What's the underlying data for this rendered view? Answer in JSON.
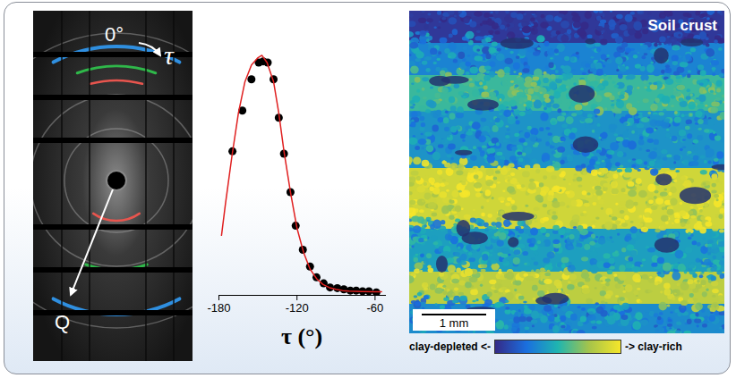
{
  "detector": {
    "angle_label": "0°",
    "tau_label": "τ",
    "q_label": "Q"
  },
  "chart_data": {
    "type": "scatter",
    "x_label": "τ (°)",
    "xlim": [
      -180,
      -52
    ],
    "xticks": [
      -180,
      -120,
      -60
    ],
    "ylim": [
      0,
      1.05
    ],
    "tick_labels": "x",
    "series": [
      {
        "type": "scatter",
        "color": "#000000",
        "marker": "circle",
        "x": [
          -169.6,
          -162,
          -155,
          -149.4,
          -146,
          -142.5,
          -138,
          -134,
          -130,
          -125,
          -121,
          -115.5,
          -110,
          -105,
          -99.5,
          -94.6,
          -89,
          -84,
          -79,
          -74.5,
          -69.6,
          -64.7,
          -59
        ],
        "values": [
          0.6,
          0.77,
          0.9,
          0.97,
          0.975,
          0.97,
          0.9,
          0.74,
          0.59,
          0.43,
          0.29,
          0.19,
          0.12,
          0.075,
          0.05,
          0.033,
          0.03,
          0.025,
          0.02,
          0.02,
          0.017,
          0.017,
          0.012
        ]
      },
      {
        "type": "line",
        "color": "#e02020",
        "line_style": "solid",
        "x": [
          -178,
          -175,
          -170,
          -165,
          -160,
          -155,
          -150,
          -147,
          -143,
          -138,
          -134,
          -130,
          -125,
          -120,
          -115,
          -110,
          -105,
          -100,
          -95,
          -90,
          -85,
          -80,
          -70,
          -60,
          -55
        ],
        "values": [
          0.25,
          0.38,
          0.58,
          0.76,
          0.89,
          0.96,
          0.99,
          1.0,
          0.97,
          0.89,
          0.76,
          0.6,
          0.43,
          0.28,
          0.18,
          0.11,
          0.07,
          0.045,
          0.032,
          0.025,
          0.02,
          0.018,
          0.016,
          0.015,
          0.015
        ]
      }
    ]
  },
  "map": {
    "title": "Soil crust",
    "scale_bar": "1 mm",
    "colorbar": {
      "low_label": "clay-depleted <-",
      "high_label": "-> clay-rich"
    }
  }
}
